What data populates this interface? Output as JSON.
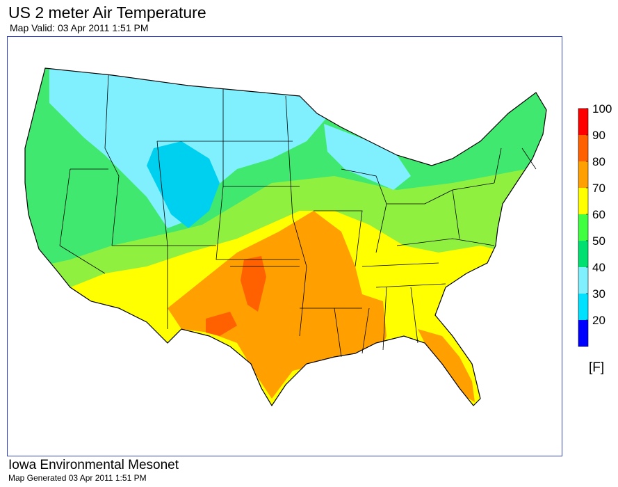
{
  "header": {
    "title": "US 2 meter Air Temperature",
    "valid": "Map Valid: 03 Apr 2011 1:51 PM"
  },
  "legend": {
    "unit": "[F]",
    "colors": [
      "#0000ff",
      "#00e0ff",
      "#80f0ff",
      "#00e070",
      "#40ff40",
      "#ffff00",
      "#ffa000",
      "#ff6000",
      "#ff0000"
    ],
    "labels": [
      "20",
      "30",
      "40",
      "50",
      "60",
      "70",
      "80",
      "90",
      "100"
    ]
  },
  "map": {
    "palette": {
      "cold": "#80f0ff",
      "cool": "#40e870",
      "mild": "#90f040",
      "warm": "#ffff00",
      "hot": "#ffa000",
      "hotter": "#ff6000",
      "coldest": "#00d0f0",
      "border": "#000000"
    }
  },
  "footer": {
    "org": "Iowa Environmental Mesonet",
    "generated": "Map Generated 03 Apr 2011 1:51 PM"
  }
}
